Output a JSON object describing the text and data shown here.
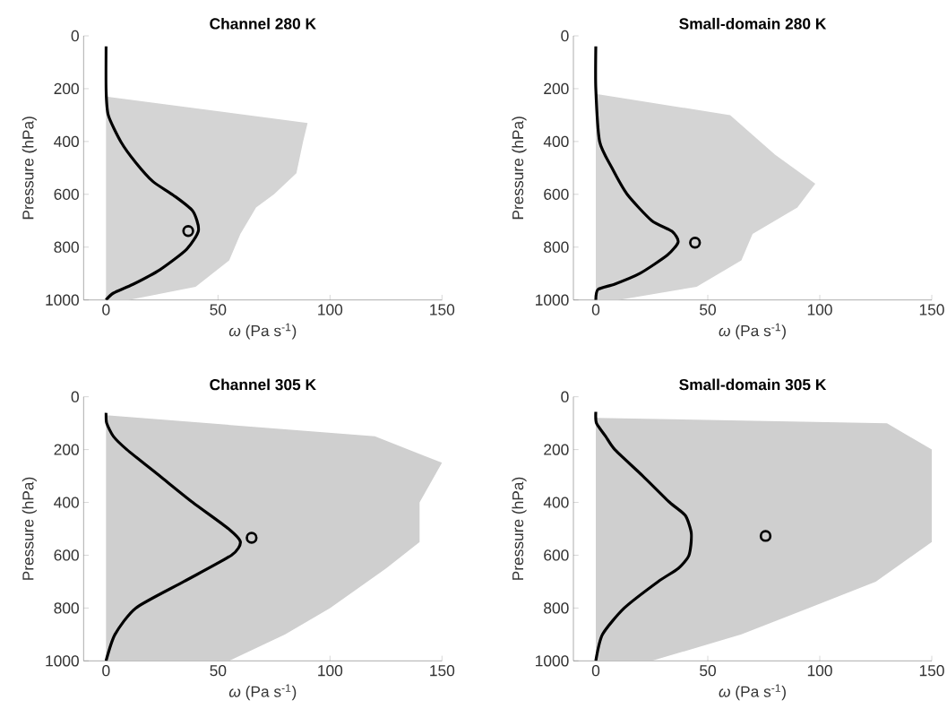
{
  "chart_data": [
    {
      "type": "line",
      "title": "Channel 280 K",
      "xlabel": "*ω* (Pa s$^{-1}$)",
      "ylabel": "Pressure (hPa)",
      "xlim": [
        -10,
        150
      ],
      "xticks": [
        0,
        50,
        100,
        150
      ],
      "ylim": [
        1000,
        0
      ],
      "yticks": [
        0,
        200,
        400,
        600,
        800,
        1000
      ],
      "grid": false,
      "series": [
        {
          "type": "area",
          "color": "#d4d4d4",
          "x": [
            0,
            90,
            88,
            85,
            75,
            67,
            60,
            55,
            40,
            10,
            0
          ],
          "values": [
            230,
            330,
            400,
            520,
            600,
            650,
            750,
            850,
            950,
            1000,
            1000
          ]
        },
        {
          "color": "#000000",
          "x": [
            0,
            0,
            1,
            6.7,
            13.3,
            21,
            30,
            38.7,
            41.3,
            36,
            24,
            12,
            3.3,
            0
          ],
          "values": [
            40,
            200,
            300,
            402,
            480,
            552,
            603,
            663,
            736,
            808,
            886,
            941,
            974,
            1000
          ]
        },
        {
          "type": "scatter",
          "marker": "circle",
          "color": "#000000",
          "x": [
            36.7
          ],
          "values": [
            739
          ]
        }
      ]
    },
    {
      "type": "line",
      "title": "Small-domain 280 K",
      "xlabel": "*ω* (Pa s$^{-1}$)",
      "ylabel": "Pressure (hPa)",
      "xlim": [
        -10,
        150
      ],
      "xticks": [
        0,
        50,
        100,
        150
      ],
      "ylim": [
        1000,
        0
      ],
      "yticks": [
        0,
        200,
        400,
        600,
        800,
        1000
      ],
      "grid": false,
      "series": [
        {
          "type": "area",
          "color": "#d4d4d4",
          "x": [
            0,
            60,
            80,
            98,
            90,
            70,
            65,
            45,
            10,
            0
          ],
          "values": [
            220,
            300,
            450,
            560,
            650,
            750,
            850,
            950,
            1000,
            1000
          ]
        },
        {
          "color": "#000000",
          "x": [
            0,
            0,
            1.7,
            7.2,
            14,
            25,
            34,
            36.8,
            32,
            19.6,
            8.5,
            1,
            0
          ],
          "values": [
            40,
            200,
            400,
            500,
            600,
            700,
            740,
            780,
            830,
            900,
            940,
            960,
            1000
          ]
        },
        {
          "type": "scatter",
          "marker": "circle",
          "color": "#000000",
          "x": [
            44.3
          ],
          "values": [
            783
          ]
        }
      ]
    },
    {
      "type": "line",
      "title": "Channel 305 K",
      "xlabel": "*ω* (Pa s$^{-1}$)",
      "ylabel": "Pressure (hPa)",
      "xlim": [
        -10,
        150
      ],
      "xticks": [
        0,
        50,
        100,
        150
      ],
      "ylim": [
        1000,
        0
      ],
      "yticks": [
        0,
        200,
        400,
        600,
        800,
        1000
      ],
      "grid": false,
      "series": [
        {
          "type": "area",
          "color": "#cfcfcf",
          "x": [
            0,
            120,
            150,
            140,
            140,
            125,
            100,
            80,
            55,
            0
          ],
          "values": [
            70,
            150,
            250,
            400,
            550,
            650,
            800,
            900,
            1000,
            1000
          ]
        },
        {
          "color": "#000000",
          "x": [
            0,
            0.3,
            3.3,
            9.3,
            24,
            38.7,
            54.7,
            60,
            56,
            34.7,
            13.3,
            4,
            0
          ],
          "values": [
            61,
            100,
            150,
            200,
            300,
            400,
            500,
            550,
            600,
            700,
            800,
            900,
            1000
          ]
        },
        {
          "type": "scatter",
          "marker": "circle",
          "color": "#000000",
          "x": [
            65
          ],
          "values": [
            534
          ]
        }
      ]
    },
    {
      "type": "line",
      "title": "Small-domain 305 K",
      "xlabel": "*ω* (Pa s$^{-1}$)",
      "ylabel": "Pressure (hPa)",
      "xlim": [
        -10,
        150
      ],
      "xticks": [
        0,
        50,
        100,
        150
      ],
      "ylim": [
        1000,
        0
      ],
      "yticks": [
        0,
        200,
        400,
        600,
        800,
        1000
      ],
      "grid": false,
      "series": [
        {
          "type": "area",
          "color": "#cfcfcf",
          "x": [
            0,
            130,
            150,
            150,
            125,
            95,
            65,
            25,
            0
          ],
          "values": [
            80,
            100,
            200,
            550,
            700,
            800,
            900,
            1000,
            1000
          ]
        },
        {
          "color": "#000000",
          "x": [
            0,
            0.3,
            4.4,
            8.5,
            21,
            33,
            40,
            42.7,
            41.6,
            36.8,
            27.8,
            12.7,
            3,
            0
          ],
          "values": [
            57,
            100,
            150,
            200,
            300,
            400,
            450,
            520,
            600,
            650,
            700,
            800,
            900,
            1000
          ]
        },
        {
          "type": "scatter",
          "marker": "circle",
          "color": "#000000",
          "x": [
            75.8
          ],
          "values": [
            527
          ]
        }
      ]
    }
  ]
}
